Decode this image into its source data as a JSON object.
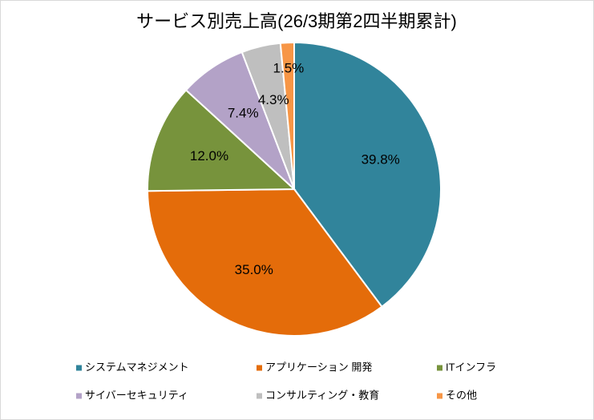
{
  "chart_data": {
    "type": "pie",
    "title": "サービス別売上高(26/3期第2四半期累計)",
    "categories": [
      "システムマネジメント",
      "アプリケーション 開発",
      "ITインフラ",
      "サイバーセキュリティ",
      "コンサルティング・教育",
      "その他"
    ],
    "values": [
      39.8,
      35.0,
      12.0,
      7.4,
      4.3,
      1.5
    ],
    "value_labels": [
      "39.8%",
      "35.0%",
      "12.0%",
      "7.4%",
      "4.3%",
      "1.5%"
    ],
    "colors": [
      "#31849b",
      "#e46c0a",
      "#77933c",
      "#b3a2c7",
      "#bfbfbf",
      "#f79646"
    ],
    "legend": "bottom"
  }
}
